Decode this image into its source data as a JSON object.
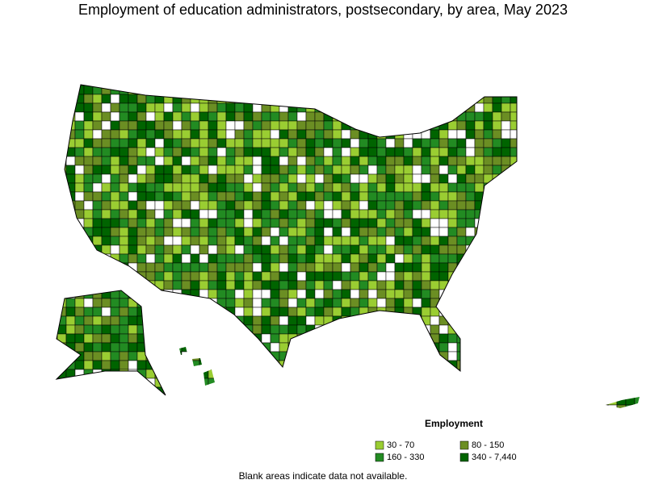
{
  "title": "Employment of education administrators, postsecondary, by area, May 2023",
  "legend": {
    "title": "Employment",
    "items": [
      {
        "label": "30 - 70",
        "color": "#9acd32"
      },
      {
        "label": "80 - 150",
        "color": "#6b8e23"
      },
      {
        "label": "160 - 330",
        "color": "#228b22"
      },
      {
        "label": "340 - 7,440",
        "color": "#006400"
      }
    ]
  },
  "footnote": "Blank areas indicate data not available."
}
